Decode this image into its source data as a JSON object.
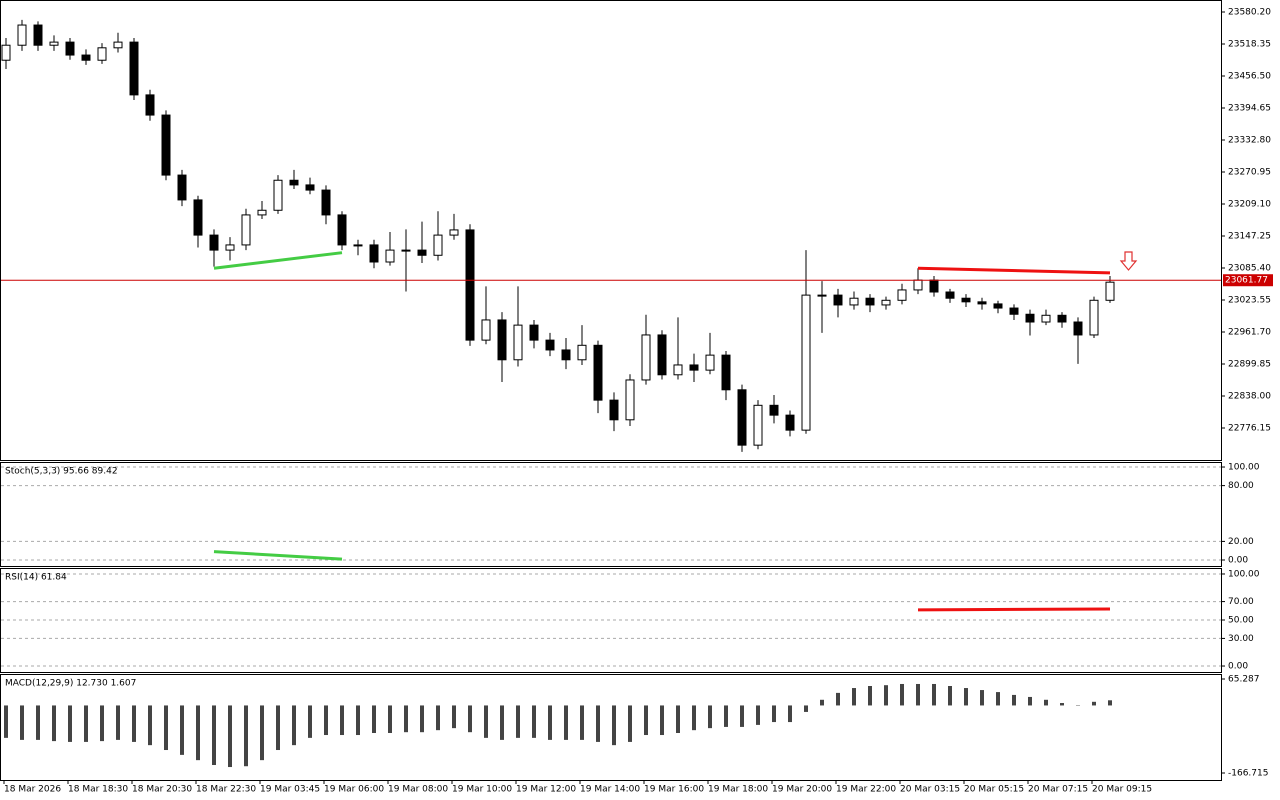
{
  "chart_data": [
    {
      "type": "candlestick",
      "categories": [
        "18 Mar 2026",
        null,
        null,
        null,
        "18 Mar 18:30",
        null,
        null,
        null,
        "18 Mar 20:30",
        null,
        null,
        null,
        "18 Mar 22:30",
        null,
        null,
        null,
        "19 Mar 03:45",
        null,
        null,
        null,
        "19 Mar 06:00",
        null,
        null,
        null,
        "19 Mar 08:00",
        null,
        null,
        null,
        "19 Mar 10:00",
        null,
        null,
        null,
        "19 Mar 12:00",
        null,
        null,
        null,
        "19 Mar 14:00",
        null,
        null,
        null,
        "19 Mar 16:00",
        null,
        null,
        null,
        "19 Mar 18:00",
        null,
        null,
        null,
        "19 Mar 20:00",
        null,
        null,
        null,
        "19 Mar 22:00",
        null,
        null,
        null,
        "20 Mar 03:15",
        null,
        null,
        null,
        "20 Mar 05:15",
        null,
        null,
        null,
        "20 Mar 07:15",
        null,
        null,
        null,
        "20 Mar 09:15",
        null
      ],
      "open": [
        23487,
        23516,
        23555,
        23516,
        23522,
        23497,
        23487,
        23511,
        23522,
        23420,
        23381,
        23265,
        23217,
        23149,
        23120,
        23130,
        23188,
        23197,
        23255,
        23246,
        23236,
        23188,
        23130,
        23130,
        23097,
        23120,
        23120,
        23110,
        23149,
        23159,
        22946,
        22985,
        22908,
        22975,
        22946,
        22927,
        22908,
        22936,
        22830,
        22792,
        22869,
        22956,
        22879,
        22898,
        22888,
        22917,
        22850,
        22743,
        22820,
        22801,
        22772,
        23033,
        23033,
        23014,
        23027,
        23014,
        23023,
        23043,
        23062,
        23039,
        23027,
        23020,
        23016,
        23008,
        22996,
        22981,
        22994,
        22981,
        22956,
        23023
      ],
      "high": [
        23530,
        23565,
        23562,
        23535,
        23530,
        23508,
        23520,
        23540,
        23530,
        23430,
        23390,
        23275,
        23225,
        23160,
        23145,
        23200,
        23215,
        23265,
        23275,
        23260,
        23245,
        23195,
        23140,
        23140,
        23155,
        23160,
        23175,
        23195,
        23190,
        23170,
        23050,
        23000,
        23050,
        22985,
        22960,
        22950,
        22975,
        22945,
        22845,
        22880,
        22995,
        22965,
        22990,
        22920,
        22960,
        22925,
        22860,
        22830,
        22840,
        22810,
        23120,
        23060,
        23045,
        23040,
        23035,
        23030,
        23055,
        23085,
        23070,
        23045,
        23035,
        23028,
        23022,
        23015,
        23005,
        23005,
        23000,
        22990,
        23030,
        23070
      ],
      "low": [
        23470,
        23505,
        23505,
        23505,
        23488,
        23478,
        23480,
        23502,
        23410,
        23370,
        23255,
        23205,
        23125,
        23088,
        23100,
        23120,
        23180,
        23190,
        23238,
        23228,
        23170,
        23120,
        23110,
        23085,
        23090,
        23040,
        23095,
        23100,
        23140,
        22935,
        22938,
        22865,
        22895,
        22930,
        22915,
        22890,
        22898,
        22805,
        22770,
        22780,
        22860,
        22870,
        22870,
        22865,
        22880,
        22830,
        22730,
        22735,
        22785,
        22760,
        22765,
        22960,
        22990,
        23005,
        23000,
        23005,
        23015,
        23035,
        23030,
        23018,
        23010,
        23005,
        22998,
        22985,
        22955,
        22975,
        22970,
        22900,
        22950,
        23018
      ],
      "close": [
        23516,
        23555,
        23516,
        23522,
        23497,
        23487,
        23511,
        23522,
        23420,
        23381,
        23265,
        23217,
        23149,
        23120,
        23130,
        23188,
        23197,
        23255,
        23246,
        23236,
        23188,
        23130,
        23130,
        23097,
        23120,
        23120,
        23110,
        23149,
        23159,
        22946,
        22985,
        22908,
        22975,
        22946,
        22927,
        22908,
        22936,
        22830,
        22792,
        22869,
        22956,
        22879,
        22898,
        22888,
        22917,
        22850,
        22743,
        22820,
        22801,
        22772,
        23033,
        23033,
        23014,
        23027,
        23014,
        23023,
        23043,
        23062,
        23039,
        23027,
        23020,
        23016,
        23008,
        22996,
        22981,
        22994,
        22981,
        22956,
        23023,
        23058
      ],
      "up_color": "#ffffff",
      "down_color": "#000000",
      "ylim": [
        22714.3,
        23603.4
      ],
      "yticks": [
        {
          "value": 23580.2,
          "label": "23580.20"
        },
        {
          "value": 23518.35,
          "label": "23518.35"
        },
        {
          "value": 23456.5,
          "label": "23456.50"
        },
        {
          "value": 23394.65,
          "label": "23394.65"
        },
        {
          "value": 23332.8,
          "label": "23332.80"
        },
        {
          "value": 23270.95,
          "label": "23270.95"
        },
        {
          "value": 23209.1,
          "label": "23209.10"
        },
        {
          "value": 23147.25,
          "label": "23147.25"
        },
        {
          "value": 23085.4,
          "label": "23085.40"
        },
        {
          "value": 23023.55,
          "label": "23023.55"
        },
        {
          "value": 22961.7,
          "label": "22961.70"
        },
        {
          "value": 22899.85,
          "label": "22899.85"
        },
        {
          "value": 22838,
          "label": "22838.00"
        },
        {
          "value": 22776.15,
          "label": "22776.15"
        }
      ],
      "price_line": {
        "value": 23061.77,
        "color": "#cc0000"
      },
      "trend_lines": [
        {
          "x": [
            13,
            21
          ],
          "y": [
            23085,
            23115
          ],
          "color": "#44cc44"
        },
        {
          "x": [
            57,
            69
          ],
          "y": [
            23085,
            23076
          ],
          "color": "#ee1111"
        }
      ]
    },
    {
      "type": "line",
      "title": "Stoch(5,3,3) 95.66 89.42",
      "series": [
        {
          "color": "#1f8a7a",
          "values": [
            5,
            32,
            54,
            48,
            32,
            22,
            54,
            70,
            27,
            5,
            2,
            0,
            5,
            13,
            11,
            88,
            93,
            94,
            86,
            65,
            22,
            4,
            16,
            16,
            32,
            59,
            61,
            68,
            65,
            16,
            16,
            22,
            65,
            27,
            27,
            41,
            32,
            16,
            13,
            22,
            86,
            48,
            43,
            32,
            32,
            22,
            13,
            32,
            65,
            59,
            84,
            81,
            75,
            65,
            59,
            32,
            70,
            65,
            16,
            11,
            16,
            22,
            16,
            8,
            32,
            81,
            65,
            16,
            65,
            95.66
          ]
        },
        {
          "color": "#c00000",
          "values": [
            10,
            20,
            40,
            45,
            45,
            34,
            36,
            49,
            50,
            34,
            11,
            2,
            2,
            6,
            10,
            37,
            64,
            92,
            91,
            82,
            58,
            30,
            14,
            12,
            21,
            36,
            51,
            63,
            65,
            50,
            32,
            18,
            34,
            38,
            40,
            32,
            33,
            30,
            20,
            17,
            40,
            52,
            59,
            41,
            36,
            29,
            22,
            22,
            37,
            52,
            69,
            75,
            80,
            74,
            66,
            52,
            54,
            56,
            50,
            32,
            14,
            16,
            18,
            15,
            19,
            40,
            59,
            54,
            49,
            89.42
          ]
        }
      ],
      "ylim": [
        -6.45,
        105.4
      ],
      "yticks": [
        {
          "value": 100,
          "label": "100.00"
        },
        {
          "value": 80,
          "label": "80.00"
        },
        {
          "value": 20,
          "label": "20.00"
        },
        {
          "value": 0,
          "label": "0.00"
        }
      ],
      "grid": true,
      "trend_lines": [
        {
          "x": [
            13,
            21
          ],
          "y": [
            9,
            1
          ],
          "color": "#44cc44"
        }
      ]
    },
    {
      "type": "line",
      "title": "RSI(14) 61.84",
      "series": [
        {
          "color": "#1e90ff",
          "values": [
            23,
            30,
            32,
            30,
            33,
            33,
            37,
            34,
            22,
            20,
            15,
            15,
            13,
            11,
            23,
            28,
            39,
            41,
            40,
            39,
            28,
            28,
            30,
            23,
            35,
            37,
            35,
            45,
            48,
            30,
            36,
            28,
            41,
            38,
            37,
            37,
            41,
            32,
            35,
            50,
            43,
            50,
            45,
            48,
            45,
            39,
            41,
            39,
            41,
            41,
            65,
            59,
            60,
            59,
            59,
            60,
            61,
            59,
            58,
            57,
            55,
            54,
            52,
            50,
            43,
            51,
            50,
            39,
            60,
            61.84
          ]
        }
      ],
      "ylim": [
        -6.5,
        106.5
      ],
      "yticks": [
        {
          "value": 100,
          "label": "100.00"
        },
        {
          "value": 70,
          "label": "70.00"
        },
        {
          "value": 50,
          "label": "50.00"
        },
        {
          "value": 30,
          "label": "30.00"
        },
        {
          "value": 0,
          "label": "0.00"
        }
      ],
      "grid": true,
      "trend_lines": [
        {
          "x": [
            57,
            69
          ],
          "y": [
            61,
            62
          ],
          "color": "#ee1111"
        }
      ]
    },
    {
      "type": "combo",
      "title": "MACD(12,29,9) 12.730 1.607",
      "series": [
        {
          "kind": "bar",
          "color": "#444444",
          "values": [
            -80,
            -85,
            -85,
            -88,
            -90,
            -90,
            -88,
            -85,
            -90,
            -98,
            -110,
            -122,
            -135,
            -147,
            -152,
            -150,
            -135,
            -110,
            -98,
            -80,
            -73,
            -73,
            -73,
            -68,
            -68,
            -66,
            -66,
            -61,
            -56,
            -66,
            -80,
            -85,
            -80,
            -80,
            -85,
            -85,
            -85,
            -90,
            -98,
            -90,
            -73,
            -73,
            -68,
            -61,
            -56,
            -53,
            -53,
            -48,
            -41,
            -41,
            -16,
            14,
            31,
            43,
            48,
            50,
            53,
            53,
            53,
            48,
            43,
            38,
            33,
            26,
            21,
            14,
            6,
            -1,
            9,
            12.73
          ]
        },
        {
          "kind": "line",
          "color": "#b00000",
          "values": [
            -66,
            -82,
            -98,
            -100,
            -103,
            -103,
            -103,
            -98,
            -93,
            -95,
            -98,
            -106,
            -115,
            -128,
            -140,
            -148,
            -155,
            -151,
            -147,
            -135,
            -122,
            -113,
            -105,
            -95,
            -85,
            -81,
            -78,
            -75,
            -73,
            -73,
            -73,
            -75,
            -78,
            -79,
            -80,
            -80,
            -80,
            -82,
            -85,
            -85,
            -85,
            -82,
            -80,
            -77,
            -75,
            -71,
            -68,
            -64,
            -61,
            -58,
            -56,
            -36,
            -16,
            -1,
            14,
            26,
            38,
            43,
            48,
            47,
            46,
            42,
            38,
            33,
            28,
            23,
            19,
            15,
            11,
            1.607
          ]
        }
      ],
      "ylim": [
        -184,
        77.63
      ],
      "yticks": [
        {
          "value": 65.287,
          "label": "65.287"
        },
        {
          "value": -166.715,
          "label": "-166.715"
        }
      ]
    }
  ]
}
